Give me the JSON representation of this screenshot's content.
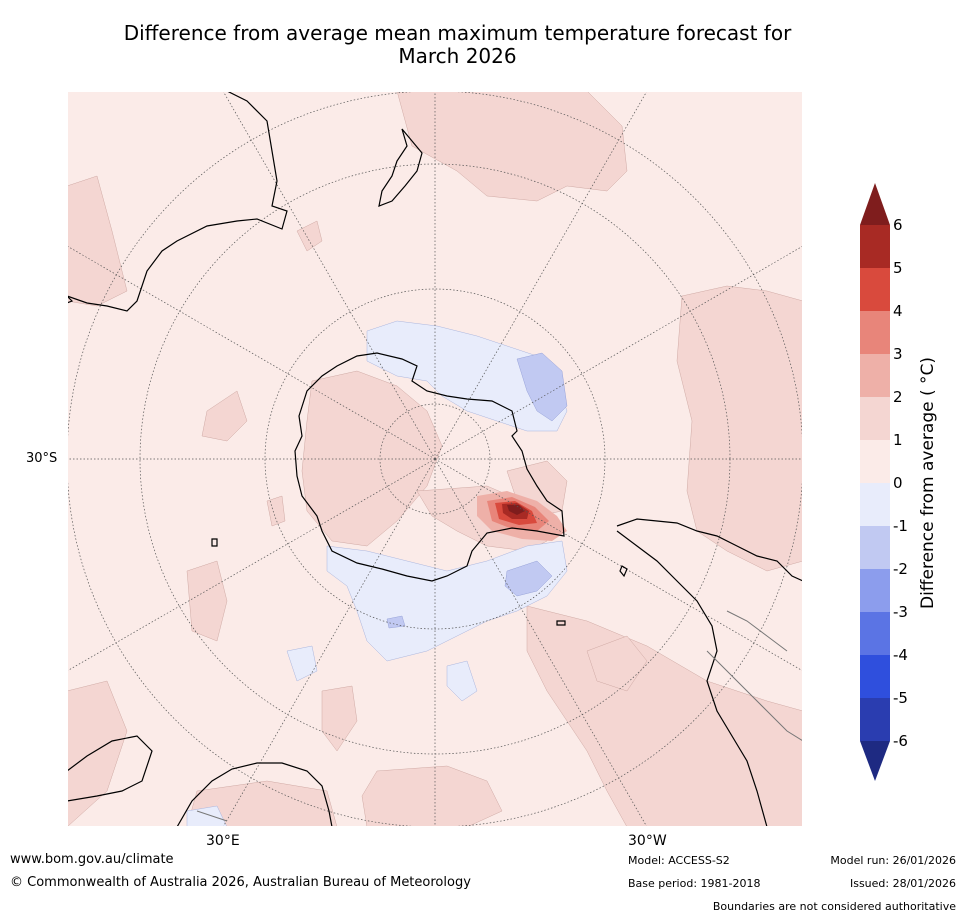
{
  "title_line1": "Difference from average mean maximum temperature forecast for",
  "title_line2": "March 2026",
  "map": {
    "projection": "south polar stereographic",
    "labels": {
      "lat": "30°S",
      "lon_east": "30°E",
      "lon_west": "30°W"
    }
  },
  "colorbar": {
    "label": "Difference from average ( °C)",
    "ticks": [
      "6",
      "5",
      "4",
      "3",
      "2",
      "1",
      "0",
      "-1",
      "-2",
      "-3",
      "-4",
      "-5",
      "-6"
    ],
    "colors": {
      "above_6": "#7f1d1d",
      "b5_6": "#a82a24",
      "b4_5": "#d94a3d",
      "b3_4": "#e8857a",
      "b2_3": "#eeb0a8",
      "b1_2": "#f4d6d2",
      "b0_1": "#fbebe8",
      "bm1_0": "#e8ecfb",
      "bm2_m1": "#c1c9f2",
      "bm3_m2": "#8c9ded",
      "bm4_m3": "#5b74e4",
      "bm5_m4": "#2f4fdd",
      "bm6_m5": "#2a3db0",
      "below_m6": "#1e2a82"
    }
  },
  "footer": {
    "url": "www.bom.gov.au/climate",
    "copyright": "© Commonwealth of Australia 2026, Australian Bureau of Meteorology",
    "model": "Model: ACCESS-S2",
    "base_period": "Base period: 1981-2018",
    "model_run": "Model run: 26/01/2026",
    "issued": "Issued: 28/01/2026",
    "disclaimer": "Boundaries are not considered authoritative"
  }
}
